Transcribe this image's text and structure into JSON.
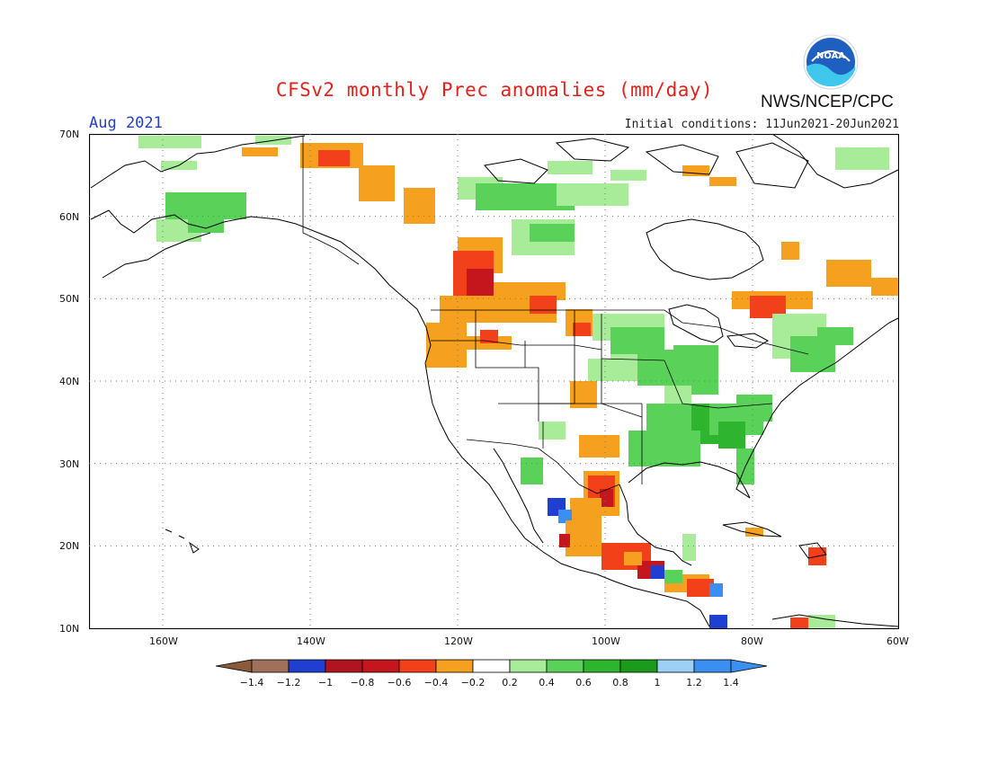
{
  "header": {
    "title": "CFSv2 monthly Prec anomalies (mm/day)",
    "org": "NWS/NCEP/CPC",
    "logo_text": "NOAA",
    "period": "Aug 2021",
    "init_conditions": "Initial conditions: 11Jun2021-20Jun2021"
  },
  "axes": {
    "lat_labels": [
      "70N",
      "60N",
      "50N",
      "40N",
      "30N",
      "20N",
      "10N"
    ],
    "lon_labels": [
      "160W",
      "140W",
      "120W",
      "100W",
      "80W",
      "60W"
    ],
    "grid": "dotted"
  },
  "legend": {
    "tick_labels": [
      "-1.4",
      "-1.2",
      "-1",
      "-0.8",
      "-0.6",
      "-0.4",
      "-0.2",
      "0.2",
      "0.4",
      "0.6",
      "0.8",
      "1",
      "1.2",
      "1.4"
    ],
    "colors": [
      "#8b5a3c",
      "#a0705a",
      "#1e3fcf",
      "#b0141e",
      "#c4161c",
      "#f2401a",
      "#f5a01e",
      "#ffffff",
      "#a8ec9a",
      "#5ad25a",
      "#2fb42f",
      "#1b9a1b",
      "#9cd0f5",
      "#3b8ff0",
      "#3b8ff0"
    ]
  }
}
